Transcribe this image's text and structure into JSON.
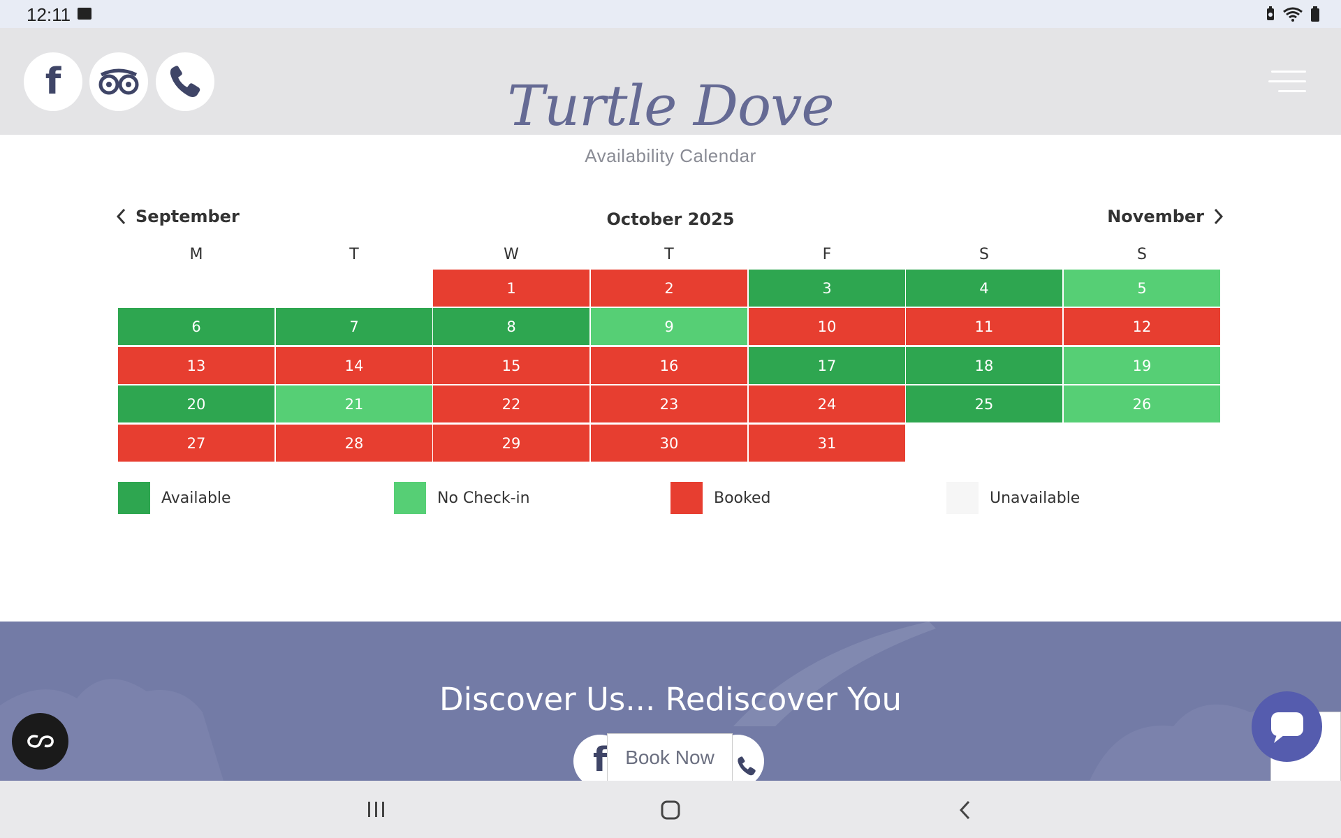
{
  "status_bar": {
    "time": "12:11"
  },
  "header": {
    "brand": "Turtle Dove",
    "social": [
      {
        "name": "facebook-icon",
        "glyph": "f"
      },
      {
        "name": "tripadvisor-icon",
        "glyph": ""
      },
      {
        "name": "phone-icon",
        "glyph": ""
      }
    ]
  },
  "page": {
    "subtitle": "Availability Calendar"
  },
  "calendar": {
    "prev_label": "September",
    "month_title": "October 2025",
    "next_label": "November",
    "weekdays": [
      "M",
      "T",
      "W",
      "T",
      "F",
      "S",
      "S"
    ],
    "start_offset": 2,
    "days": [
      {
        "d": "1",
        "s": "booked"
      },
      {
        "d": "2",
        "s": "booked"
      },
      {
        "d": "3",
        "s": "avail"
      },
      {
        "d": "4",
        "s": "avail"
      },
      {
        "d": "5",
        "s": "nocheck"
      },
      {
        "d": "6",
        "s": "avail"
      },
      {
        "d": "7",
        "s": "avail"
      },
      {
        "d": "8",
        "s": "avail"
      },
      {
        "d": "9",
        "s": "nocheck"
      },
      {
        "d": "10",
        "s": "booked"
      },
      {
        "d": "11",
        "s": "booked"
      },
      {
        "d": "12",
        "s": "booked"
      },
      {
        "d": "13",
        "s": "booked"
      },
      {
        "d": "14",
        "s": "booked"
      },
      {
        "d": "15",
        "s": "booked"
      },
      {
        "d": "16",
        "s": "booked"
      },
      {
        "d": "17",
        "s": "avail"
      },
      {
        "d": "18",
        "s": "avail"
      },
      {
        "d": "19",
        "s": "nocheck"
      },
      {
        "d": "20",
        "s": "avail"
      },
      {
        "d": "21",
        "s": "nocheck"
      },
      {
        "d": "22",
        "s": "booked"
      },
      {
        "d": "23",
        "s": "booked"
      },
      {
        "d": "24",
        "s": "booked"
      },
      {
        "d": "25",
        "s": "avail"
      },
      {
        "d": "26",
        "s": "nocheck"
      },
      {
        "d": "27",
        "s": "booked"
      },
      {
        "d": "28",
        "s": "booked"
      },
      {
        "d": "29",
        "s": "booked"
      },
      {
        "d": "30",
        "s": "booked"
      },
      {
        "d": "31",
        "s": "booked"
      }
    ],
    "legend": [
      {
        "label": "Available",
        "color": "#2ea650"
      },
      {
        "label": "No Check-in",
        "color": "#56cf75"
      },
      {
        "label": "Booked",
        "color": "#e73e30"
      },
      {
        "label": "Unavailable",
        "color": "#f6f6f6"
      }
    ]
  },
  "banner": {
    "title": "Discover Us... Rediscover You",
    "book_label": "Book Now"
  },
  "colors": {
    "available": "#2ea650",
    "no_checkin": "#56cf75",
    "booked": "#e73e30",
    "brand": "#656a94",
    "banner": "#737ba6",
    "chat": "#555cae"
  }
}
